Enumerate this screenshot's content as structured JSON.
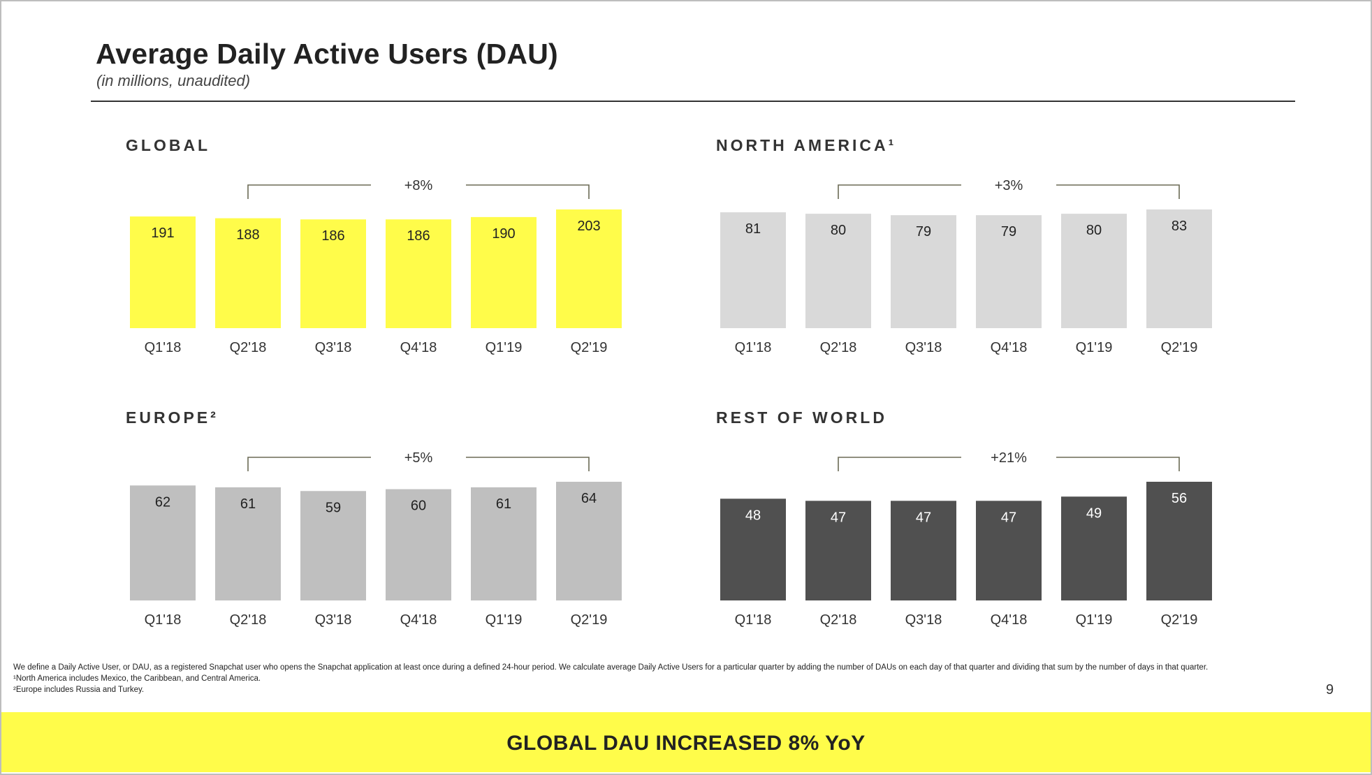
{
  "title": "Average Daily Active Users (DAU)",
  "subtitle": "(in millions, unaudited)",
  "page_number": "9",
  "banner": "GLOBAL DAU INCREASED 8% YoY",
  "footnotes": [
    "We define a Daily Active User, or DAU, as a registered Snapchat user who opens the Snapchat application at least once during a defined 24-hour period. We calculate average Daily Active Users for a particular quarter by adding the number of DAUs on each day of that quarter and dividing that sum by the number of days in that quarter.",
    "¹North America includes Mexico, the Caribbean, and Central America.",
    "²Europe includes Russia and Turkey."
  ],
  "chart_data": [
    {
      "type": "bar",
      "title": "GLOBAL",
      "categories": [
        "Q1'18",
        "Q2'18",
        "Q3'18",
        "Q4'18",
        "Q1'19",
        "Q2'19"
      ],
      "values": [
        191,
        188,
        186,
        186,
        190,
        203
      ],
      "bar_color": "#fffc4a",
      "growth_label": "+8%",
      "growth_span": [
        "Q2'18",
        "Q2'19"
      ]
    },
    {
      "type": "bar",
      "title": "NORTH AMERICA¹",
      "categories": [
        "Q1'18",
        "Q2'18",
        "Q3'18",
        "Q4'18",
        "Q1'19",
        "Q2'19"
      ],
      "values": [
        81,
        80,
        79,
        79,
        80,
        83
      ],
      "bar_color": "#d9d9d9",
      "growth_label": "+3%",
      "growth_span": [
        "Q2'18",
        "Q2'19"
      ]
    },
    {
      "type": "bar",
      "title": "EUROPE²",
      "categories": [
        "Q1'18",
        "Q2'18",
        "Q3'18",
        "Q4'18",
        "Q1'19",
        "Q2'19"
      ],
      "values": [
        62,
        61,
        59,
        60,
        61,
        64
      ],
      "bar_color": "#bfbfbf",
      "growth_label": "+5%",
      "growth_span": [
        "Q2'18",
        "Q2'19"
      ]
    },
    {
      "type": "bar",
      "title": "REST OF WORLD",
      "categories": [
        "Q1'18",
        "Q2'18",
        "Q3'18",
        "Q4'18",
        "Q1'19",
        "Q2'19"
      ],
      "values": [
        48,
        47,
        47,
        47,
        49,
        56
      ],
      "bar_color": "#505050",
      "value_label_color": "#ffffff",
      "growth_label": "+21%",
      "growth_span": [
        "Q2'18",
        "Q2'19"
      ]
    }
  ]
}
